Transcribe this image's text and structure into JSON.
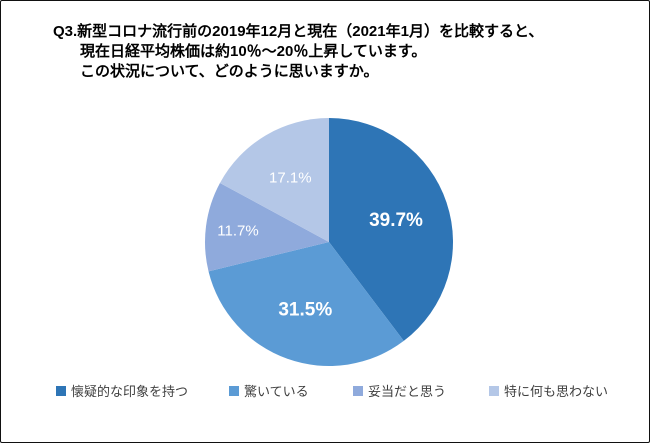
{
  "title": {
    "line1": "Q3.新型コロナ流行前の2019年12月と現在（2021年1月）を比較すると、",
    "line2": "現在日経平均株価は約10％～20％上昇しています。",
    "line3": "この状況について、どのように思いますか。"
  },
  "chart_data": {
    "type": "pie",
    "title": "Q3.新型コロナ流行前の2019年12月と現在（2021年1月）を比較すると、現在日経平均株価は約10％～20％上昇しています。この状況について、どのように思いますか。",
    "start_angle_deg": 0,
    "direction": "clockwise",
    "legend_position": "bottom",
    "label_text_color": "#ffffff",
    "slices": [
      {
        "label": "懐疑的な印象を持つ",
        "value": 39.7,
        "display": "39.7%",
        "color": "#2E75B6"
      },
      {
        "label": "驚いている",
        "value": 31.5,
        "display": "31.5%",
        "color": "#5B9BD5"
      },
      {
        "label": "妥当だと思う",
        "value": 11.7,
        "display": "11.7%",
        "color": "#8FAADC"
      },
      {
        "label": "特に何も思わない",
        "value": 17.1,
        "display": "17.1%",
        "color": "#B4C7E7"
      }
    ]
  }
}
